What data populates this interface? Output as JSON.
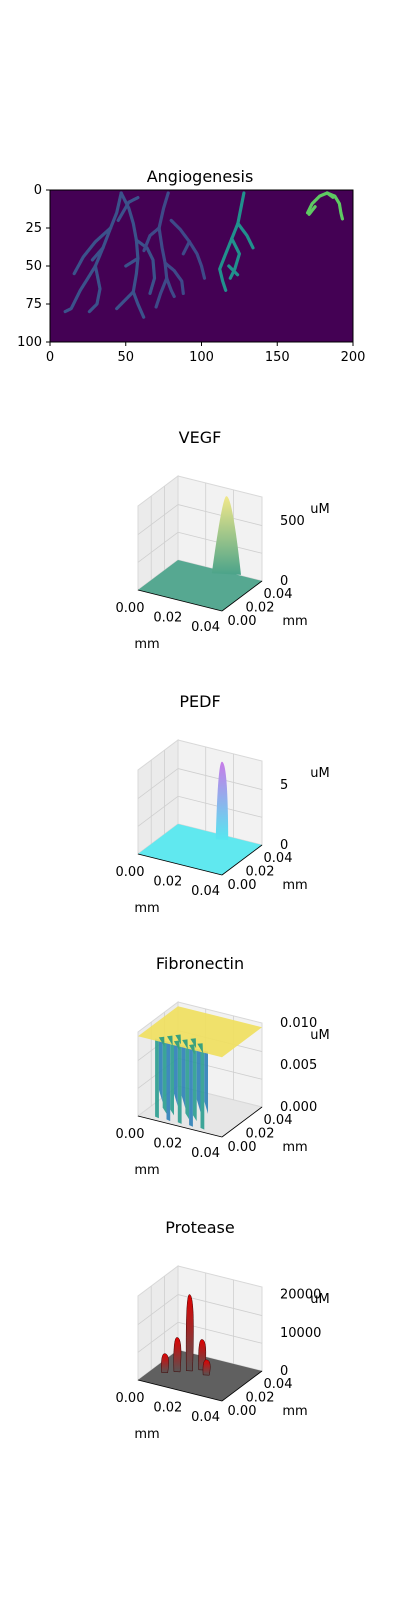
{
  "figure": {
    "width": 400,
    "height": 1600
  },
  "chart_data": [
    {
      "type": "heatmap",
      "title": "Angiogenesis",
      "xlim": [
        0,
        200
      ],
      "ylim": [
        100,
        0
      ],
      "x_ticks": [
        "0",
        "50",
        "100",
        "150",
        "200"
      ],
      "y_ticks": [
        "0",
        "25",
        "50",
        "75",
        "100"
      ],
      "colormap": "viridis",
      "background_color": "#440154",
      "vessels": [
        {
          "color": "#3b528b",
          "paths": [
            [
              [
                47,
                2
              ],
              [
                44,
                15
              ],
              [
                40,
                25
              ],
              [
                35,
                38
              ],
              [
                30,
                50
              ],
              [
                25,
                58
              ],
              [
                20,
                66
              ],
              [
                14,
                78
              ],
              [
                10,
                80
              ]
            ],
            [
              [
                40,
                25
              ],
              [
                30,
                34
              ],
              [
                22,
                44
              ],
              [
                16,
                55
              ]
            ],
            [
              [
                35,
                38
              ],
              [
                28,
                46
              ]
            ],
            [
              [
                47,
                2
              ],
              [
                52,
                12
              ],
              [
                55,
                22
              ],
              [
                57,
                33
              ],
              [
                58,
                45
              ],
              [
                57,
                55
              ],
              [
                55,
                67
              ],
              [
                58,
                75
              ],
              [
                62,
                84
              ]
            ],
            [
              [
                57,
                33
              ],
              [
                64,
                38
              ],
              [
                68,
                46
              ],
              [
                69,
                58
              ],
              [
                66,
                68
              ]
            ],
            [
              [
                58,
                45
              ],
              [
                50,
                50
              ]
            ],
            [
              [
                55,
                67
              ],
              [
                50,
                72
              ],
              [
                44,
                78
              ]
            ],
            [
              [
                30,
                50
              ],
              [
                33,
                65
              ],
              [
                31,
                75
              ],
              [
                26,
                80
              ]
            ],
            [
              [
                45,
                20
              ],
              [
                52,
                8
              ],
              [
                58,
                5
              ]
            ]
          ]
        },
        {
          "color": "#3e4a89",
          "paths": [
            [
              [
                78,
                2
              ],
              [
                75,
                12
              ],
              [
                72,
                25
              ],
              [
                74,
                38
              ],
              [
                76,
                48
              ],
              [
                77,
                58
              ],
              [
                73,
                68
              ],
              [
                70,
                77
              ]
            ],
            [
              [
                72,
                25
              ],
              [
                66,
                30
              ],
              [
                62,
                40
              ]
            ],
            [
              [
                76,
                48
              ],
              [
                82,
                53
              ],
              [
                87,
                60
              ],
              [
                88,
                68
              ]
            ],
            [
              [
                77,
                58
              ],
              [
                80,
                66
              ],
              [
                82,
                70
              ]
            ],
            [
              [
                80,
                20
              ],
              [
                86,
                26
              ],
              [
                92,
                34
              ],
              [
                97,
                42
              ],
              [
                100,
                50
              ],
              [
                102,
                58
              ]
            ],
            [
              [
                92,
                34
              ],
              [
                88,
                42
              ]
            ]
          ]
        },
        {
          "color": "#21908d",
          "paths": [
            [
              [
                128,
                2
              ],
              [
                126,
                12
              ],
              [
                124,
                22
              ],
              [
                120,
                32
              ],
              [
                116,
                42
              ],
              [
                112,
                52
              ],
              [
                114,
                60
              ],
              [
                116,
                66
              ]
            ],
            [
              [
                124,
                22
              ],
              [
                130,
                30
              ],
              [
                134,
                38
              ]
            ],
            [
              [
                120,
                32
              ],
              [
                125,
                42
              ],
              [
                122,
                52
              ],
              [
                119,
                58
              ]
            ],
            [
              [
                118,
                50
              ],
              [
                124,
                56
              ]
            ]
          ]
        },
        {
          "color": "#5ec962",
          "paths": [
            [
              [
                170,
                15
              ],
              [
                173,
                9
              ],
              [
                178,
                4
              ],
              [
                183,
                2
              ],
              [
                188,
                4
              ],
              [
                191,
                9
              ],
              [
                192,
                15
              ],
              [
                193,
                19
              ]
            ],
            [
              [
                183,
                2
              ],
              [
                187,
                5
              ]
            ],
            [
              [
                175,
                11
              ],
              [
                171,
                16
              ]
            ]
          ]
        }
      ]
    },
    {
      "type": "surface3d",
      "title": "VEGF",
      "x_ticks": [
        "0.00",
        "0.02",
        "0.04"
      ],
      "y_ticks": [
        "0.00",
        "0.02",
        "0.04"
      ],
      "z_ticks": [
        "0",
        "500"
      ],
      "zlim": [
        0,
        700
      ],
      "xlabel": "mm",
      "ylabel": "mm",
      "zlabel": "uM",
      "base_color": "#4aa38a",
      "peak_color": "#f2e88a",
      "peaks": [
        {
          "x": 0.6,
          "y": 0.95,
          "height": 650,
          "width": 0.14
        }
      ]
    },
    {
      "type": "surface3d",
      "title": "PEDF",
      "x_ticks": [
        "0.00",
        "0.02",
        "0.04"
      ],
      "y_ticks": [
        "0.00",
        "0.02",
        "0.04"
      ],
      "z_ticks": [
        "0",
        "5"
      ],
      "zlim": [
        0,
        7
      ],
      "xlabel": "mm",
      "ylabel": "mm",
      "zlabel": "uM",
      "base_color": "#55e8f0",
      "peak_color": "#c77be8",
      "peaks": [
        {
          "x": 0.58,
          "y": 0.88,
          "height": 6.5,
          "width": 0.06
        }
      ]
    },
    {
      "type": "surface3d",
      "title": "Fibronectin",
      "x_ticks": [
        "0.00",
        "0.02",
        "0.04"
      ],
      "y_ticks": [
        "0.00",
        "0.02",
        "0.04"
      ],
      "z_ticks": [
        "0.000",
        "0.005",
        "0.010"
      ],
      "zlim": [
        0,
        0.01
      ],
      "xlabel": "mm",
      "ylabel": "mm",
      "zlabel": "uM",
      "base_color": "#f0e060",
      "wall_color": "#2a9d8f",
      "plateau_value": 0.0095
    },
    {
      "type": "surface3d",
      "title": "Protease",
      "x_ticks": [
        "0.00",
        "0.02",
        "0.04"
      ],
      "y_ticks": [
        "0.00",
        "0.02",
        "0.04"
      ],
      "z_ticks": [
        "0",
        "10000",
        "20000"
      ],
      "zlim": [
        0,
        22000
      ],
      "xlabel": "mm",
      "ylabel": "mm",
      "zlabel": "uM",
      "base_color": "#555555",
      "peak_color": "#e00000",
      "peaks": [
        {
          "x": 0.35,
          "y": 0.55,
          "height": 20000
        },
        {
          "x": 0.25,
          "y": 0.45,
          "height": 9000
        },
        {
          "x": 0.45,
          "y": 0.65,
          "height": 8000
        },
        {
          "x": 0.15,
          "y": 0.35,
          "height": 5000
        },
        {
          "x": 0.55,
          "y": 0.55,
          "height": 4000
        }
      ]
    }
  ]
}
